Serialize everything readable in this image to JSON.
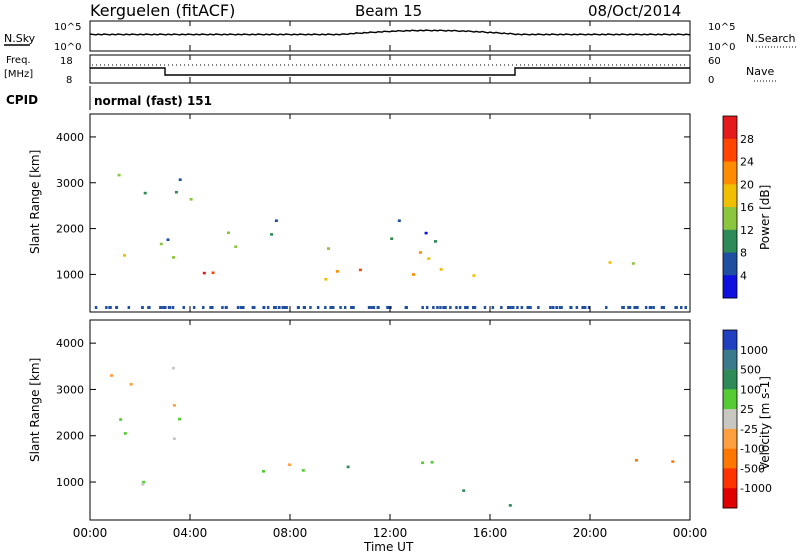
{
  "header": {
    "station": "Kerguelen (fitACF)",
    "beam": "Beam 15",
    "date": "08/Oct/2014"
  },
  "summary": {
    "nsky_label": "N.Sky",
    "nsky_top": "10^5",
    "nsky_bottom": "10^0",
    "nsearch_label": "N.Search",
    "nsearch_top": "10^5",
    "nsearch_bottom": "10^0",
    "freq_label_1": "Freq.",
    "freq_label_2": "[MHz]",
    "freq_top": "18",
    "freq_bottom": "8",
    "nave_label": "Nave",
    "nave_top": "60",
    "nave_bottom": "0",
    "cpid_label": "CPID",
    "cpid_value": "normal (fast) 151"
  },
  "axes": {
    "ylabel": "Slant Range [km]",
    "xlabel": "Time UT",
    "yticks": [
      "4000",
      "3000",
      "2000",
      "1000"
    ],
    "xticks": [
      "00:00",
      "04:00",
      "08:00",
      "12:00",
      "16:00",
      "20:00",
      "00:00"
    ]
  },
  "power_scale": {
    "label": "Power [dB]",
    "ticks": [
      "28",
      "24",
      "20",
      "16",
      "12",
      "8",
      "4"
    ],
    "colors": [
      "#e41a1c",
      "#ff4500",
      "#ff8c00",
      "#f0c000",
      "#8cc63f",
      "#2e8b57",
      "#1f4fa0",
      "#1010e0"
    ]
  },
  "velocity_scale": {
    "label": "Velocity [m s-1]",
    "ticks": [
      "1000",
      "500",
      "100",
      "25",
      "-25",
      "-100",
      "-500",
      "-1000"
    ],
    "colors": [
      "#2040c0",
      "#3a7a8c",
      "#2e8b57",
      "#55cc33",
      "#c8c8c0",
      "#ffa040",
      "#ff7700",
      "#ff3300",
      "#e00000"
    ]
  },
  "chart_data": [
    {
      "type": "heatmap",
      "title": "Power",
      "xlabel": "Time UT",
      "ylabel": "Slant Range [km]",
      "xlim": [
        "00:00",
        "24:00"
      ],
      "ylim": [
        180,
        4500
      ],
      "colorbar_label": "Power [dB]",
      "regions": [
        {
          "t_start": 0.5,
          "t_end": 4.0,
          "r_start": 900,
          "r_end": 3500,
          "level_db": 12
        },
        {
          "t_start": 2.0,
          "t_end": 11.0,
          "r_start": 800,
          "r_end": 1500,
          "level_db": 24
        },
        {
          "t_start": 3.0,
          "t_end": 14.0,
          "r_start": 1500,
          "r_end": 2500,
          "level_db": 10
        },
        {
          "t_start": 11.0,
          "t_end": 15.5,
          "r_start": 700,
          "r_end": 2200,
          "level_db": 18
        },
        {
          "t_start": 18.5,
          "t_end": 22.0,
          "r_start": 900,
          "r_end": 1500,
          "level_db": 20
        }
      ]
    },
    {
      "type": "heatmap",
      "title": "Velocity",
      "xlabel": "Time UT",
      "ylabel": "Slant Range [km]",
      "xlim": [
        "00:00",
        "24:00"
      ],
      "ylim": [
        180,
        4500
      ],
      "colorbar_label": "Velocity [m s-1]",
      "regions": [
        {
          "t_start": 0.5,
          "t_end": 4.0,
          "r_start": 900,
          "r_end": 3500,
          "velocity": 0
        },
        {
          "t_start": 2.0,
          "t_end": 12.0,
          "r_start": 800,
          "r_end": 1500,
          "velocity": 0
        },
        {
          "t_start": 12.5,
          "t_end": 16.0,
          "r_start": 700,
          "r_end": 1800,
          "velocity": 100
        },
        {
          "t_start": 16.0,
          "t_end": 18.0,
          "r_start": 400,
          "r_end": 900,
          "velocity": 300
        },
        {
          "t_start": 21.5,
          "t_end": 24.0,
          "r_start": 900,
          "r_end": 2000,
          "velocity": -300
        }
      ]
    }
  ]
}
